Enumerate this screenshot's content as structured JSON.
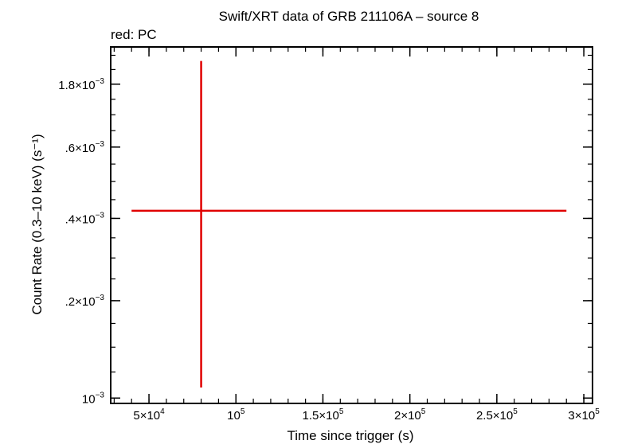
{
  "chart_data": {
    "type": "scatter",
    "title": "Swift/XRT data of GRB 211106A – source 8",
    "subtitle": "red: PC",
    "xlabel": "Time since trigger (s)",
    "ylabel": "Count Rate (0.3–10 keV) (s⁻¹)",
    "x_scale": "linear",
    "y_scale": "log",
    "xlim": [
      28000,
      305000
    ],
    "ylim": [
      0.00099,
      0.00193
    ],
    "grid": false,
    "x_ticks": [
      {
        "value": 50000,
        "mantissa": "5×10",
        "exp": "4"
      },
      {
        "value": 100000,
        "mantissa": "10",
        "exp": "5"
      },
      {
        "value": 150000,
        "mantissa": "1.5×10",
        "exp": "5"
      },
      {
        "value": 200000,
        "mantissa": "2×10",
        "exp": "5"
      },
      {
        "value": 250000,
        "mantissa": "2.5×10",
        "exp": "5"
      },
      {
        "value": 300000,
        "mantissa": "3×10",
        "exp": "5"
      }
    ],
    "x_minor_step": 10000,
    "y_ticks": [
      {
        "value": 0.001,
        "mantissa": "10",
        "exp": "−3"
      },
      {
        "value": 0.0012,
        "mantissa": ".2×10",
        "exp": "−3"
      },
      {
        "value": 0.0014,
        "mantissa": ".4×10",
        "exp": "−3"
      },
      {
        "value": 0.0016,
        "mantissa": ".6×10",
        "exp": "−3"
      },
      {
        "value": 0.0018,
        "mantissa": "1.8×10",
        "exp": "−3"
      }
    ],
    "y_minor_step": 5e-05,
    "series": [
      {
        "color": "#e00000",
        "points": [
          {
            "x": 80000,
            "x_lo": 40000,
            "x_hi": 290000,
            "y": 0.00142,
            "y_lo": 0.00102,
            "y_hi": 0.00188
          }
        ]
      }
    ]
  }
}
